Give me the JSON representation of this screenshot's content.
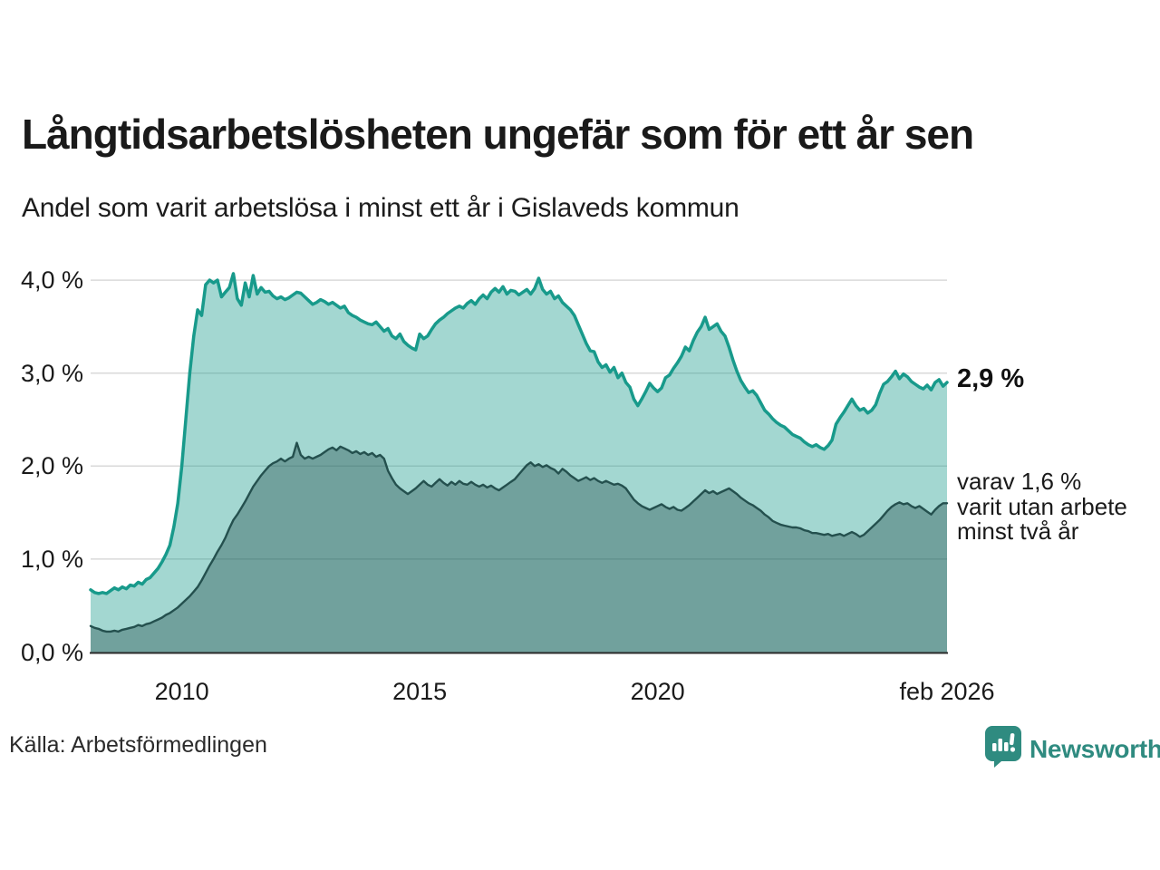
{
  "title": "Långtidsarbetslösheten ungefär som för ett år sen",
  "subtitle": "Andel som varit arbetslösa i minst ett år i Gislaveds kommun",
  "source": "Källa: Arbetsförmedlingen",
  "logo": {
    "text": "Newsworthy",
    "color": "#2f8b80",
    "icon": "speech-bubble-bar-chart"
  },
  "annotations": {
    "latest_total": "2,9 %",
    "secondary": [
      "varav 1,6 %",
      "varit utan arbete",
      "minst två år"
    ]
  },
  "colors": {
    "teal_line": "#189a8b",
    "teal_fill": "rgba(25,154,139,0.40)",
    "dark_line": "#24504e",
    "dark_fill": "rgba(37,81,79,0.40)",
    "grid": "#d9d9d9",
    "axis": "#2b2b2b",
    "text": "#1a1a1a",
    "logo_teal": "#2f8b80"
  },
  "chart_data": {
    "type": "area",
    "title": "Långtidsarbetslösheten ungefär som för ett år sen",
    "subtitle": "Andel som varit arbetslösa i minst ett år i Gislaveds kommun",
    "y_unit": "%",
    "grid": "horizontal",
    "legend": "none",
    "xlim": [
      2008.0833,
      2026.0833
    ],
    "ylim": [
      0,
      4.15
    ],
    "x_start": 2008.0833,
    "x_end": 2026.0833,
    "x_step": "monthly",
    "x_ticks": [
      {
        "v": 2010,
        "label": "2010"
      },
      {
        "v": 2015,
        "label": "2015"
      },
      {
        "v": 2020,
        "label": "2020"
      },
      {
        "v": 2026.0833,
        "label": "feb 2026"
      }
    ],
    "y_ticks": [
      {
        "v": 0,
        "label": "0,0 %"
      },
      {
        "v": 1,
        "label": "1,0 %"
      },
      {
        "v": 2,
        "label": "2,0 %"
      },
      {
        "v": 3,
        "label": "3,0 %"
      },
      {
        "v": 4,
        "label": "4,0 %"
      }
    ],
    "series": [
      {
        "name": "Andel arbetslösa minst ett år",
        "latest": 2.9,
        "latest_label": "2,9 %",
        "values": [
          0.67,
          0.64,
          0.63,
          0.64,
          0.63,
          0.66,
          0.69,
          0.67,
          0.7,
          0.68,
          0.72,
          0.71,
          0.75,
          0.73,
          0.78,
          0.8,
          0.85,
          0.9,
          0.97,
          1.05,
          1.15,
          1.35,
          1.6,
          2.0,
          2.5,
          3.0,
          3.4,
          3.68,
          3.62,
          3.95,
          4.0,
          3.97,
          4.0,
          3.82,
          3.87,
          3.92,
          4.07,
          3.8,
          3.73,
          3.97,
          3.82,
          4.05,
          3.85,
          3.92,
          3.87,
          3.88,
          3.83,
          3.8,
          3.82,
          3.79,
          3.81,
          3.84,
          3.87,
          3.86,
          3.82,
          3.78,
          3.74,
          3.76,
          3.79,
          3.77,
          3.74,
          3.76,
          3.73,
          3.7,
          3.72,
          3.65,
          3.62,
          3.6,
          3.57,
          3.55,
          3.53,
          3.52,
          3.55,
          3.5,
          3.45,
          3.48,
          3.4,
          3.37,
          3.42,
          3.34,
          3.3,
          3.27,
          3.25,
          3.42,
          3.37,
          3.4,
          3.47,
          3.53,
          3.57,
          3.6,
          3.64,
          3.67,
          3.7,
          3.72,
          3.7,
          3.75,
          3.78,
          3.74,
          3.8,
          3.84,
          3.8,
          3.87,
          3.91,
          3.87,
          3.93,
          3.85,
          3.89,
          3.88,
          3.84,
          3.87,
          3.9,
          3.85,
          3.91,
          4.02,
          3.9,
          3.85,
          3.88,
          3.8,
          3.83,
          3.76,
          3.72,
          3.68,
          3.62,
          3.52,
          3.42,
          3.32,
          3.24,
          3.23,
          3.12,
          3.06,
          3.09,
          3.01,
          3.06,
          2.95,
          3.0,
          2.9,
          2.85,
          2.72,
          2.65,
          2.72,
          2.8,
          2.89,
          2.84,
          2.8,
          2.84,
          2.95,
          2.98,
          3.05,
          3.11,
          3.18,
          3.28,
          3.24,
          3.35,
          3.44,
          3.5,
          3.6,
          3.47,
          3.5,
          3.53,
          3.45,
          3.4,
          3.28,
          3.14,
          3.02,
          2.92,
          2.85,
          2.79,
          2.81,
          2.76,
          2.68,
          2.6,
          2.56,
          2.51,
          2.47,
          2.44,
          2.42,
          2.38,
          2.34,
          2.32,
          2.3,
          2.26,
          2.23,
          2.21,
          2.23,
          2.2,
          2.18,
          2.22,
          2.28,
          2.45,
          2.52,
          2.58,
          2.65,
          2.72,
          2.65,
          2.6,
          2.62,
          2.57,
          2.6,
          2.66,
          2.78,
          2.88,
          2.91,
          2.96,
          3.02,
          2.94,
          2.99,
          2.96,
          2.91,
          2.88,
          2.85,
          2.83,
          2.87,
          2.82,
          2.9,
          2.93,
          2.86,
          2.9
        ]
      },
      {
        "name": "varav arbetslösa minst två år",
        "latest": 1.6,
        "latest_label": "1,6 %",
        "values": [
          0.28,
          0.26,
          0.25,
          0.23,
          0.22,
          0.22,
          0.23,
          0.22,
          0.24,
          0.25,
          0.26,
          0.27,
          0.29,
          0.28,
          0.3,
          0.31,
          0.33,
          0.35,
          0.37,
          0.4,
          0.42,
          0.45,
          0.48,
          0.52,
          0.56,
          0.6,
          0.65,
          0.7,
          0.77,
          0.85,
          0.93,
          1.0,
          1.08,
          1.15,
          1.23,
          1.33,
          1.42,
          1.48,
          1.55,
          1.62,
          1.7,
          1.78,
          1.84,
          1.9,
          1.95,
          2.0,
          2.03,
          2.05,
          2.08,
          2.05,
          2.08,
          2.1,
          2.25,
          2.12,
          2.08,
          2.1,
          2.08,
          2.1,
          2.12,
          2.15,
          2.18,
          2.2,
          2.17,
          2.21,
          2.19,
          2.17,
          2.14,
          2.16,
          2.13,
          2.15,
          2.12,
          2.14,
          2.1,
          2.12,
          2.08,
          1.95,
          1.87,
          1.8,
          1.76,
          1.73,
          1.7,
          1.73,
          1.76,
          1.8,
          1.84,
          1.8,
          1.78,
          1.82,
          1.86,
          1.82,
          1.79,
          1.83,
          1.8,
          1.84,
          1.81,
          1.8,
          1.83,
          1.8,
          1.78,
          1.8,
          1.77,
          1.79,
          1.76,
          1.74,
          1.77,
          1.8,
          1.83,
          1.86,
          1.91,
          1.96,
          2.01,
          2.04,
          2.0,
          2.02,
          1.99,
          2.01,
          1.98,
          1.96,
          1.92,
          1.97,
          1.94,
          1.9,
          1.87,
          1.84,
          1.86,
          1.88,
          1.85,
          1.87,
          1.84,
          1.82,
          1.84,
          1.82,
          1.8,
          1.81,
          1.79,
          1.76,
          1.7,
          1.64,
          1.6,
          1.57,
          1.55,
          1.53,
          1.55,
          1.57,
          1.59,
          1.56,
          1.54,
          1.56,
          1.53,
          1.52,
          1.55,
          1.58,
          1.62,
          1.66,
          1.7,
          1.74,
          1.71,
          1.73,
          1.7,
          1.72,
          1.74,
          1.76,
          1.73,
          1.7,
          1.66,
          1.63,
          1.6,
          1.58,
          1.55,
          1.52,
          1.48,
          1.45,
          1.41,
          1.39,
          1.37,
          1.36,
          1.35,
          1.34,
          1.34,
          1.33,
          1.31,
          1.3,
          1.28,
          1.28,
          1.27,
          1.26,
          1.27,
          1.25,
          1.26,
          1.27,
          1.25,
          1.27,
          1.29,
          1.27,
          1.24,
          1.26,
          1.3,
          1.34,
          1.38,
          1.42,
          1.47,
          1.52,
          1.56,
          1.59,
          1.61,
          1.59,
          1.6,
          1.57,
          1.55,
          1.57,
          1.54,
          1.51,
          1.48,
          1.53,
          1.57,
          1.6,
          1.6
        ]
      }
    ]
  }
}
